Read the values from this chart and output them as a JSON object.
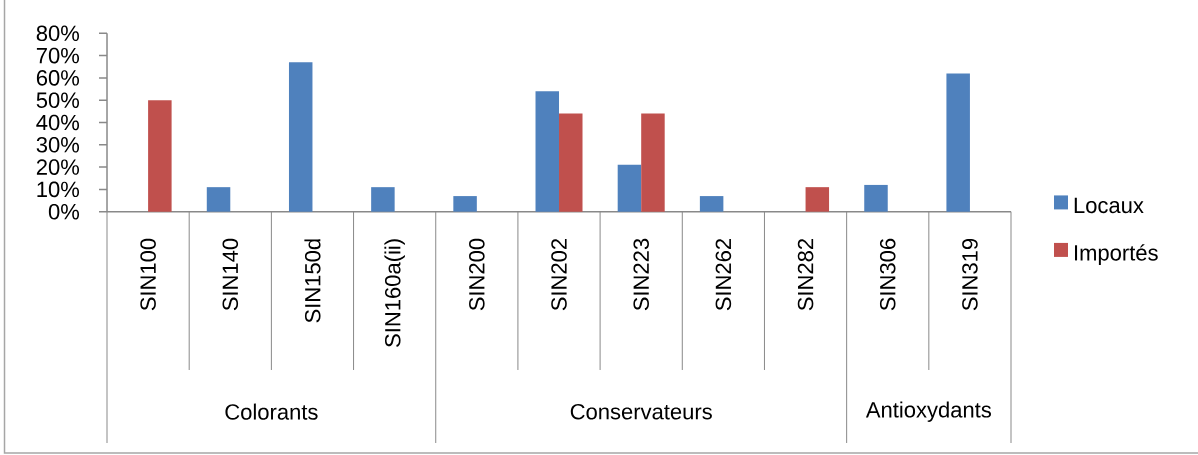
{
  "chart_data": {
    "type": "bar",
    "categories": [
      "SIN100",
      "SIN140",
      "SIN150d",
      "SIN160a(ii)",
      "SIN200",
      "SIN202",
      "SIN223",
      "SIN262",
      "SIN282",
      "SIN306",
      "SIN319"
    ],
    "series": [
      {
        "name": "Locaux",
        "color": "#4f81bd",
        "values": [
          null,
          11,
          67,
          11,
          7,
          54,
          21,
          7,
          null,
          12,
          62
        ]
      },
      {
        "name": "Importés",
        "color": "#c0504d",
        "values": [
          50,
          null,
          null,
          null,
          null,
          44,
          44,
          null,
          11,
          null,
          null
        ]
      }
    ],
    "ylim": [
      0,
      80
    ],
    "yticks": [
      {
        "value": 0,
        "label": "0%"
      },
      {
        "value": 10,
        "label": "10%"
      },
      {
        "value": 20,
        "label": "20%"
      },
      {
        "value": 30,
        "label": "30%"
      },
      {
        "value": 40,
        "label": "40%"
      },
      {
        "value": 50,
        "label": "50%"
      },
      {
        "value": 60,
        "label": "60%"
      },
      {
        "value": 70,
        "label": "70%"
      },
      {
        "value": 80,
        "label": "80%"
      }
    ],
    "legend": "right",
    "annotations": [
      "Colorants",
      "Conservateurs",
      "Antioxydants"
    ]
  }
}
